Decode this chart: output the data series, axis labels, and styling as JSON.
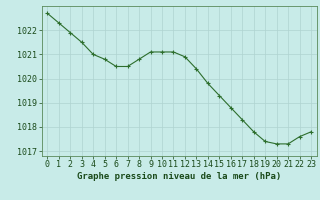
{
  "x": [
    0,
    1,
    2,
    3,
    4,
    5,
    6,
    7,
    8,
    9,
    10,
    11,
    12,
    13,
    14,
    15,
    16,
    17,
    18,
    19,
    20,
    21,
    22,
    23
  ],
  "y": [
    1022.7,
    1022.3,
    1021.9,
    1021.5,
    1021.0,
    1020.8,
    1020.5,
    1020.5,
    1020.8,
    1021.1,
    1021.1,
    1021.1,
    1020.9,
    1020.4,
    1019.8,
    1019.3,
    1018.8,
    1018.3,
    1017.8,
    1017.4,
    1017.3,
    1017.3,
    1017.6,
    1017.8
  ],
  "line_color": "#2d6e2d",
  "marker_color": "#2d6e2d",
  "bg_color": "#c8ebe8",
  "grid_color": "#afd4d0",
  "axis_label_color": "#1a4a1a",
  "spine_color": "#5a8a5a",
  "xlabel": "Graphe pression niveau de la mer (hPa)",
  "xlim": [
    -0.5,
    23.5
  ],
  "ylim": [
    1016.8,
    1023.0
  ],
  "yticks": [
    1017,
    1018,
    1019,
    1020,
    1021,
    1022
  ],
  "xticks": [
    0,
    1,
    2,
    3,
    4,
    5,
    6,
    7,
    8,
    9,
    10,
    11,
    12,
    13,
    14,
    15,
    16,
    17,
    18,
    19,
    20,
    21,
    22,
    23
  ],
  "xlabel_fontsize": 6.5,
  "tick_fontsize": 6.0,
  "linewidth": 0.8,
  "markersize": 3.5,
  "markeredgewidth": 0.8
}
